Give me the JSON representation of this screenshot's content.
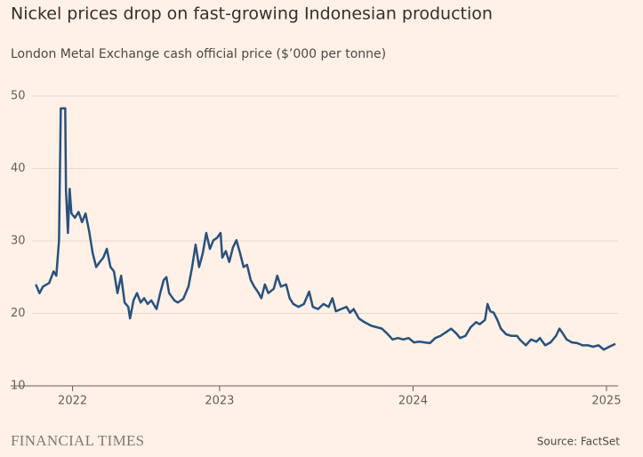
{
  "chart_data": {
    "type": "line",
    "title": "Nickel prices drop on fast-growing Indonesian production",
    "subtitle": "London Metal Exchange cash official price ($’000 per tonne)",
    "source": "Source: FactSet",
    "brand": "FINANCIAL TIMES",
    "color": "#275181",
    "grid": true,
    "xlim": [
      2021.92,
      2025.06
    ],
    "xticks": [
      {
        "value": 2022.24,
        "label": "2022"
      },
      2023,
      2024,
      2025
    ],
    "ylim": [
      10,
      50
    ],
    "yticks": [
      10,
      20,
      30,
      40,
      50
    ],
    "x": [
      2022.05,
      2022.069,
      2022.087,
      2022.119,
      2022.142,
      2022.156,
      2022.17,
      2022.179,
      2022.202,
      2022.206,
      2022.216,
      2022.225,
      2022.234,
      2022.252,
      2022.271,
      2022.289,
      2022.307,
      2022.326,
      2022.344,
      2022.362,
      2022.381,
      2022.399,
      2022.417,
      2022.436,
      2022.454,
      2022.472,
      2022.491,
      2022.509,
      2022.528,
      2022.537,
      2022.555,
      2022.573,
      2022.592,
      2022.61,
      2022.628,
      2022.647,
      2022.674,
      2022.693,
      2022.711,
      2022.725,
      2022.739,
      2022.766,
      2022.784,
      2022.812,
      2022.839,
      2022.858,
      2022.876,
      2022.894,
      2022.913,
      2022.931,
      2022.95,
      2022.968,
      2022.986,
      2023.005,
      2023.014,
      2023.032,
      2023.05,
      2023.069,
      2023.087,
      2023.106,
      2023.124,
      2023.142,
      2023.161,
      2023.179,
      2023.197,
      2023.216,
      2023.234,
      2023.252,
      2023.28,
      2023.298,
      2023.317,
      2023.344,
      2023.362,
      2023.381,
      2023.408,
      2023.436,
      2023.463,
      2023.482,
      2023.509,
      2023.537,
      2023.564,
      2023.583,
      2023.601,
      2023.628,
      2023.656,
      2023.674,
      2023.693,
      2023.72,
      2023.748,
      2023.784,
      2023.812,
      2023.839,
      2023.867,
      2023.894,
      2023.922,
      2023.95,
      2023.977,
      2024.005,
      2024.032,
      2024.06,
      2024.087,
      2024.115,
      2024.142,
      2024.17,
      2024.197,
      2024.225,
      2024.243,
      2024.271,
      2024.298,
      2024.326,
      2024.344,
      2024.372,
      2024.385,
      2024.399,
      2024.417,
      2024.436,
      2024.454,
      2024.482,
      2024.509,
      2024.537,
      2024.555,
      2024.583,
      2024.61,
      2024.638,
      2024.656,
      2024.683,
      2024.711,
      2024.739,
      2024.757,
      2024.775,
      2024.794,
      2024.821,
      2024.849,
      2024.876,
      2024.904,
      2024.931,
      2024.959,
      2024.986,
      2025.014,
      2025.046
    ],
    "values": [
      24.0,
      22.8,
      23.7,
      24.2,
      25.8,
      25.2,
      30.1,
      48.3,
      48.3,
      36.9,
      31.1,
      37.2,
      33.8,
      33.2,
      34.0,
      32.6,
      33.8,
      31.3,
      28.3,
      26.4,
      27.1,
      27.7,
      28.9,
      26.4,
      25.8,
      22.8,
      25.2,
      21.5,
      20.9,
      19.3,
      21.8,
      22.8,
      21.5,
      22.1,
      21.3,
      21.8,
      20.6,
      22.8,
      24.6,
      25.0,
      22.8,
      21.8,
      21.5,
      22.0,
      23.7,
      26.4,
      29.5,
      26.4,
      28.3,
      31.1,
      28.9,
      30.1,
      30.4,
      31.1,
      27.7,
      28.6,
      27.1,
      29.1,
      30.1,
      28.3,
      26.4,
      26.7,
      24.6,
      23.7,
      23.0,
      22.1,
      24.0,
      22.8,
      23.4,
      25.2,
      23.7,
      24.0,
      22.1,
      21.3,
      20.9,
      21.3,
      23.0,
      20.9,
      20.6,
      21.3,
      20.9,
      22.1,
      20.3,
      20.6,
      20.9,
      20.1,
      20.6,
      19.3,
      18.8,
      18.3,
      18.1,
      17.9,
      17.2,
      16.4,
      16.6,
      16.4,
      16.6,
      16.0,
      16.1,
      16.0,
      15.9,
      16.6,
      16.9,
      17.4,
      17.9,
      17.2,
      16.6,
      16.9,
      18.1,
      18.8,
      18.5,
      19.1,
      21.3,
      20.3,
      20.1,
      19.1,
      17.9,
      17.1,
      16.9,
      16.9,
      16.3,
      15.6,
      16.4,
      16.1,
      16.6,
      15.6,
      16.0,
      16.9,
      17.9,
      17.2,
      16.4,
      16.0,
      15.9,
      15.6,
      15.6,
      15.4,
      15.6,
      15.0,
      15.4,
      15.8
    ]
  }
}
